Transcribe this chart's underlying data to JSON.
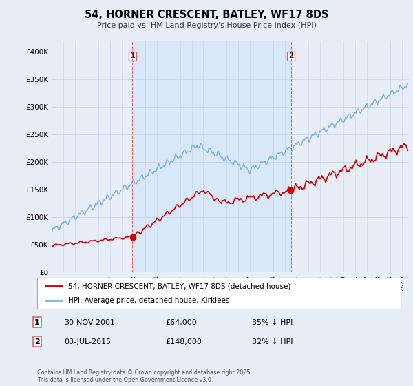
{
  "title": "54, HORNER CRESCENT, BATLEY, WF17 8DS",
  "subtitle": "Price paid vs. HM Land Registry's House Price Index (HPI)",
  "ylim": [
    0,
    420000
  ],
  "yticks": [
    0,
    50000,
    100000,
    150000,
    200000,
    250000,
    300000,
    350000,
    400000
  ],
  "hpi_color": "#7aafe0",
  "property_color": "#cc0000",
  "vline_color": "#dd6666",
  "shade_color": "#d8e8f8",
  "sale1_date_num": 2001.92,
  "sale1_price": 64000,
  "sale2_date_num": 2015.5,
  "sale2_price": 148000,
  "legend_line1": "54, HORNER CRESCENT, BATLEY, WF17 8DS (detached house)",
  "legend_line2": "HPI: Average price, detached house, Kirklees",
  "annotation1": [
    "1",
    "30-NOV-2001",
    "£64,000",
    "35% ↓ HPI"
  ],
  "annotation2": [
    "2",
    "03-JUL-2015",
    "£148,000",
    "32% ↓ HPI"
  ],
  "footnote": "Contains HM Land Registry data © Crown copyright and database right 2025.\nThis data is licensed under the Open Government Licence v3.0.",
  "bg_color": "#e8eef8",
  "plot_bg_color": "#e8eef8"
}
